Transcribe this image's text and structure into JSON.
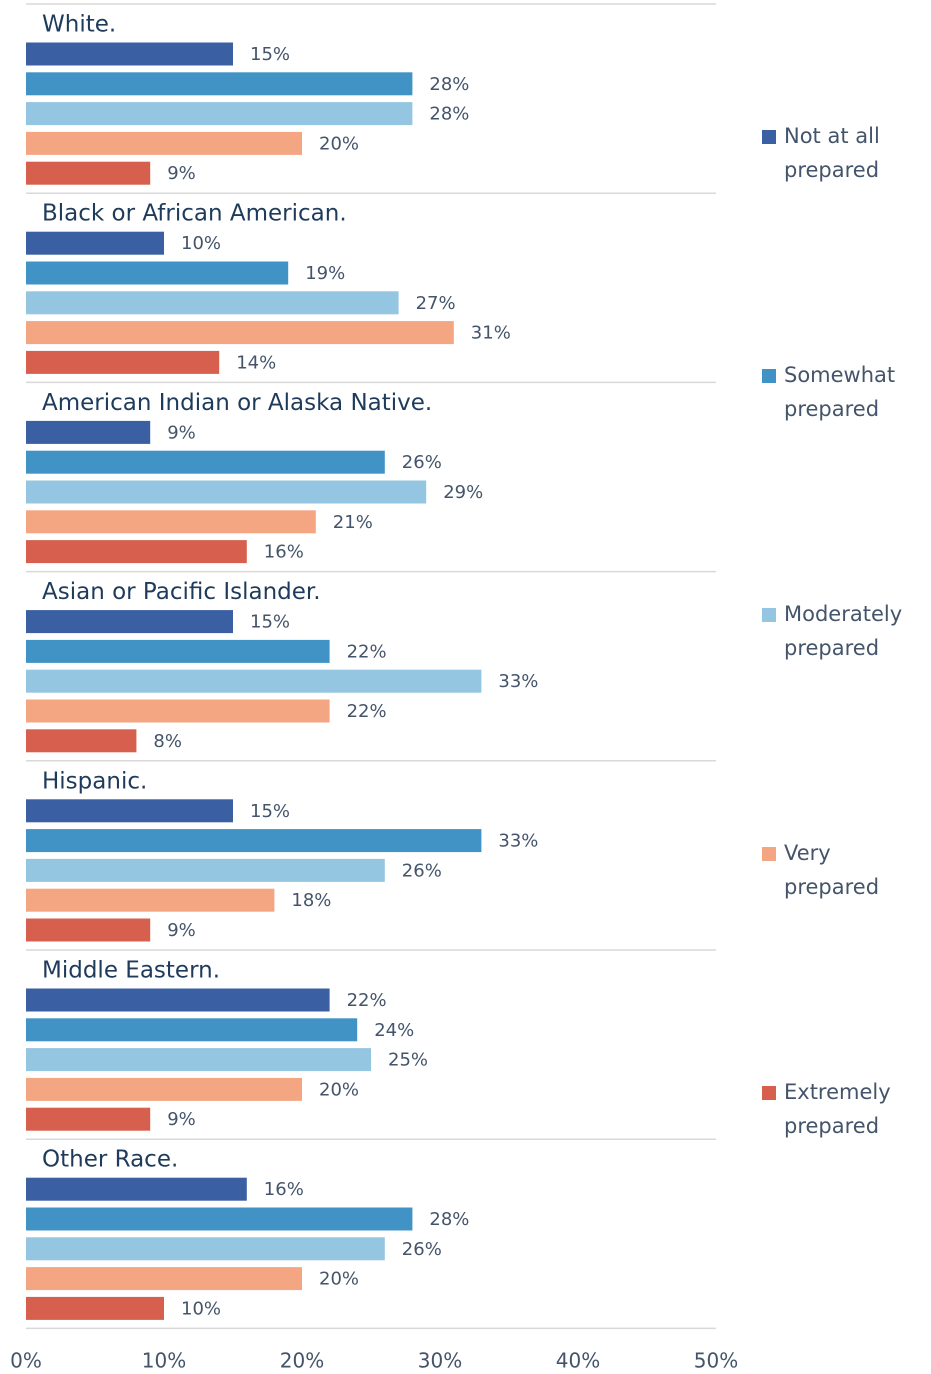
{
  "chart_data": {
    "type": "grouped-horizontal-bar",
    "categories": [
      "White.",
      "Black or African American.",
      "American Indian or Alaska Native.",
      "Asian or Pacific Islander.",
      "Hispanic.",
      "Middle Eastern.",
      "Other Race."
    ],
    "series": [
      {
        "name": "Not at all prepared",
        "color": "#3a5fa3",
        "values": [
          15,
          10,
          9,
          15,
          15,
          22,
          16
        ],
        "value_labels": [
          "15%",
          "10%",
          "9%",
          "15%",
          "15%",
          "22%",
          "16%"
        ]
      },
      {
        "name": "Somewhat prepared",
        "color": "#4193c6",
        "values": [
          28,
          19,
          26,
          22,
          33,
          24,
          28
        ],
        "value_labels": [
          "28%",
          "19%",
          "26%",
          "22%",
          "33%",
          "24%",
          "28%"
        ]
      },
      {
        "name": "Moderately prepared",
        "color": "#95c6e1",
        "values": [
          28,
          27,
          29,
          33,
          26,
          25,
          26
        ],
        "value_labels": [
          "28%",
          "27%",
          "29%",
          "33%",
          "26%",
          "25%",
          "26%"
        ]
      },
      {
        "name": "Very prepared",
        "color": "#f4a582",
        "values": [
          20,
          31,
          21,
          22,
          18,
          20,
          20
        ],
        "value_labels": [
          "20%",
          "31%",
          "21%",
          "22%",
          "18%",
          "20%",
          "20%"
        ]
      },
      {
        "name": "Extremely prepared",
        "color": "#d6604d",
        "values": [
          9,
          14,
          16,
          8,
          9,
          9,
          10
        ],
        "value_labels": [
          "9%",
          "14%",
          "16%",
          "8%",
          "9%",
          "9%",
          "10%"
        ]
      }
    ],
    "xlim": [
      0,
      50
    ],
    "xticks": [
      {
        "value": 0,
        "label": "0%"
      },
      {
        "value": 10,
        "label": "10%"
      },
      {
        "value": 20,
        "label": "20%"
      },
      {
        "value": 30,
        "label": "30%"
      },
      {
        "value": 40,
        "label": "40%"
      },
      {
        "value": 50,
        "label": "50%"
      }
    ],
    "grid": false,
    "legend": "right"
  }
}
